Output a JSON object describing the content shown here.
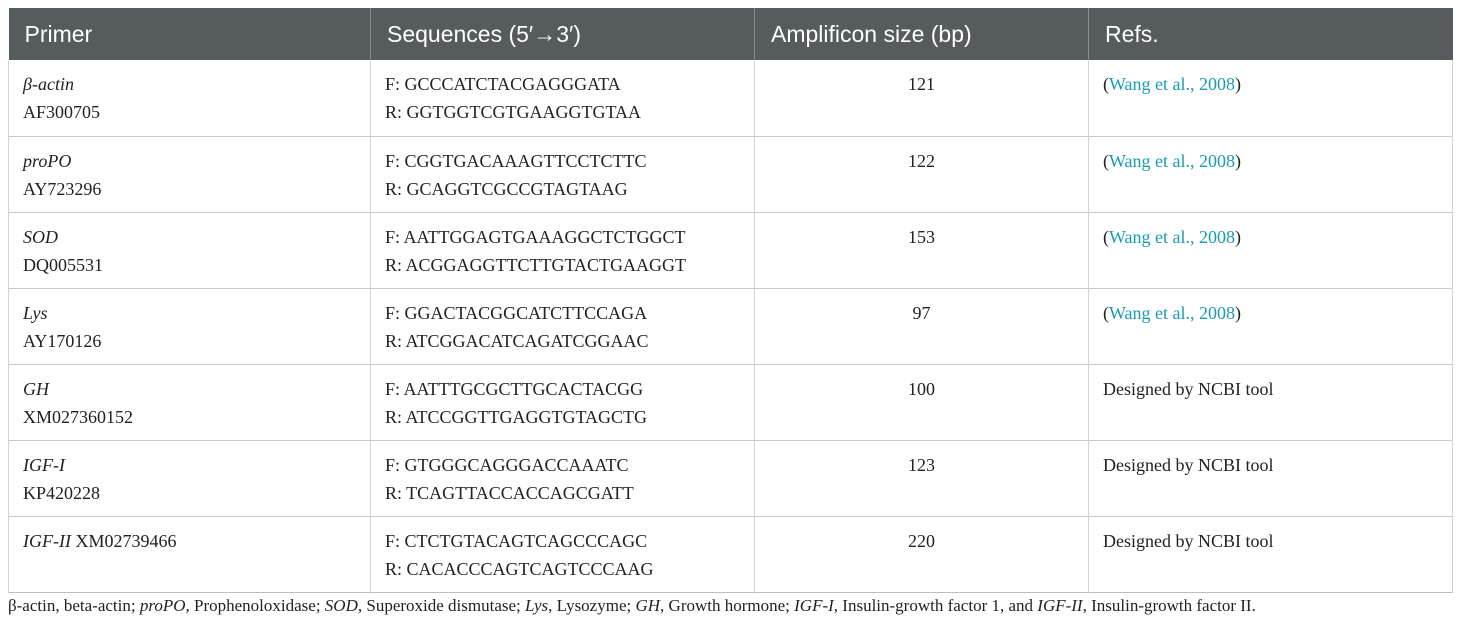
{
  "table": {
    "headers": [
      "Primer",
      "Sequences (5′→3′)",
      "Amplificon size (bp)",
      "Refs."
    ],
    "rows": [
      {
        "gene": "β-actin",
        "accession": "AF300705",
        "forward": "F: GCCCATCTACGAGGGATA",
        "reverse": "R: GGTGGTCGTGAAGGTGTAA",
        "size": "121",
        "ref_open": "(",
        "ref_link": "Wang et al., 2008",
        "ref_close": ")"
      },
      {
        "gene": "proPO",
        "accession": "AY723296",
        "forward": "F: CGGTGACAAAGTTCCTCTTC",
        "reverse": "R: GCAGGTCGCCGTAGTAAG",
        "size": "122",
        "ref_open": "(",
        "ref_link": "Wang et al., 2008",
        "ref_close": ")"
      },
      {
        "gene": "SOD",
        "accession": "DQ005531",
        "forward": "F: AATTGGAGTGAAAGGCTCTGGCT",
        "reverse": "R: ACGGAGGTTCTTGTACTGAAGGT",
        "size": "153",
        "ref_open": "(",
        "ref_link": "Wang et al., 2008",
        "ref_close": ")"
      },
      {
        "gene": "Lys",
        "accession": "AY170126",
        "forward": "F: GGACTACGGCATCTTCCAGA",
        "reverse": "R: ATCGGACATCAGATCGGAAC",
        "size": "97",
        "ref_open": "(",
        "ref_link": "Wang et al., 2008",
        "ref_close": ")"
      },
      {
        "gene": "GH",
        "accession": "XM027360152",
        "forward": "F: AATTTGCGCTTGCACTACGG",
        "reverse": "R: ATCCGGTTGAGGTGTAGCTG",
        "size": "100",
        "ref_text": "Designed by NCBI tool"
      },
      {
        "gene": "IGF-I",
        "accession": "KP420228",
        "forward": "F: GTGGGCAGGGACCAAATC",
        "reverse": "R: TCAGTTACCACCAGCGATT",
        "size": "123",
        "ref_text": "Designed by NCBI tool"
      },
      {
        "gene": "IGF-II",
        "accession": "XM02739466",
        "forward": "F: CTCTGTACAGTCAGCCCAGC",
        "reverse": "R: CACACCCAGTCAGTCCCAAG",
        "size": "220",
        "ref_text": "Designed by NCBI tool"
      }
    ]
  },
  "footnote": {
    "p1": "β-actin, beta-actin; ",
    "i1": "proPO",
    "p2": ", Prophenoloxidase; ",
    "i2": "SOD",
    "p3": ", Superoxide dismutase; ",
    "i3": "Lys",
    "p4": ", Lysozyme; ",
    "i4": "GH",
    "p5": ", Growth hormone; ",
    "i5": "IGF-I",
    "p6": ", Insulin-growth factor 1, and ",
    "i6": "IGF-II",
    "p7": ", Insulin-growth factor II."
  },
  "colors": {
    "header_bg": "#565b5e",
    "header_text": "#ffffff",
    "link": "#1a9bb5"
  }
}
